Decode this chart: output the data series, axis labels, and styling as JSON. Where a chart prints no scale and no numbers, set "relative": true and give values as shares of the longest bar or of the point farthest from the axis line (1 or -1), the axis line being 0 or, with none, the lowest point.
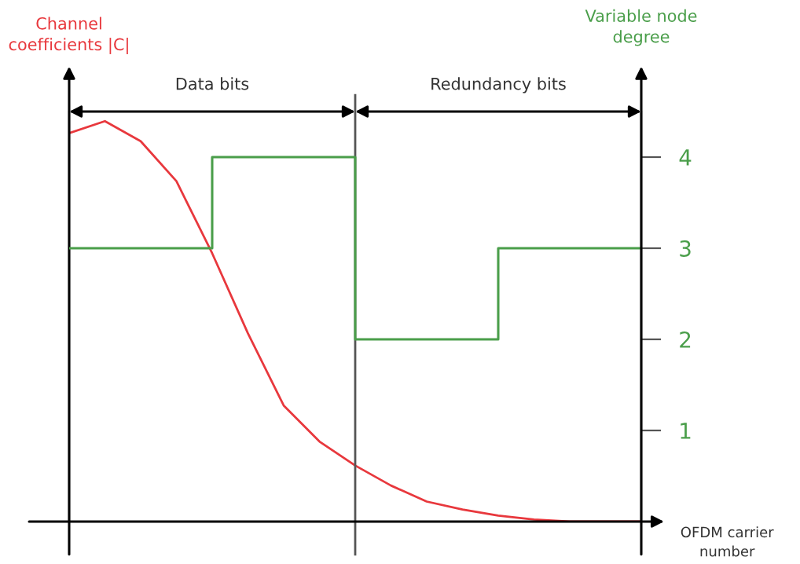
{
  "chart_data": [
    {
      "type": "line",
      "relative": true,
      "ylabel": "Channel\ncoefficients |C|",
      "xlabel": "OFDM carrier\nnumber",
      "categories": [
        null,
        null,
        null,
        null,
        null,
        null,
        null,
        null,
        null,
        null,
        null,
        null,
        null,
        null,
        null,
        null,
        null
      ],
      "series": [
        {
          "color": "#e8383d",
          "values": [
            0.97,
            1.0,
            0.95,
            0.85,
            0.67,
            0.47,
            0.29,
            0.2,
            0.14,
            0.09,
            0.05,
            0.03,
            0.015,
            0.005,
            0,
            0,
            0
          ]
        }
      ],
      "annotations": [
        "Data bits",
        "Redundancy bits"
      ]
    },
    {
      "type": "step",
      "ylabel": "Variable node\ndegree",
      "ylim": [
        0,
        4.5
      ],
      "yticks": [
        1,
        2,
        3,
        4
      ],
      "categories": [
        null,
        null,
        null,
        null,
        null,
        null,
        null,
        null,
        null,
        null,
        null,
        null,
        null,
        null,
        null,
        null,
        null
      ],
      "series": [
        {
          "color": "#4a9e4a",
          "values": [
            3,
            3,
            3,
            3,
            4,
            4,
            4,
            4,
            2,
            2,
            2,
            2,
            3,
            3,
            3,
            3,
            3
          ]
        }
      ]
    }
  ]
}
